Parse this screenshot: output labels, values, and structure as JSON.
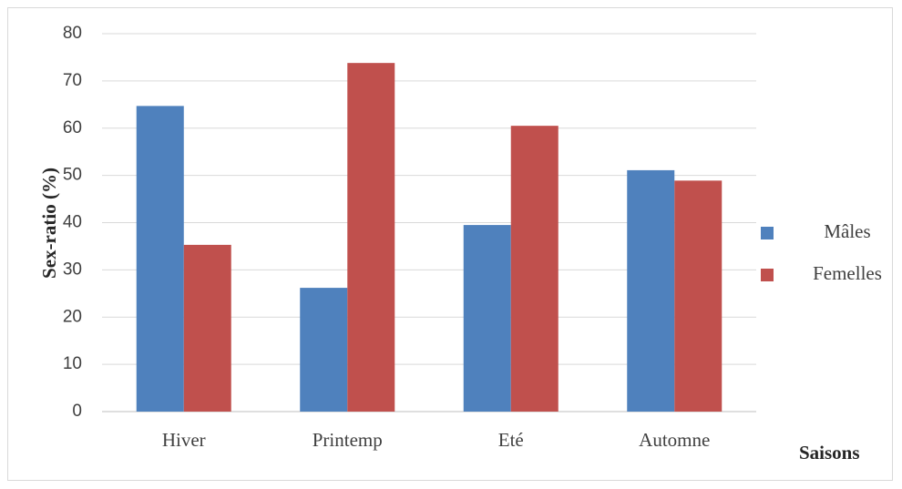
{
  "chart_data": {
    "type": "bar",
    "title": "",
    "xlabel": "Saisons",
    "ylabel": "Sex-ratio (%)",
    "categories": [
      "Hiver",
      "Printemp",
      "Eté",
      "Automne"
    ],
    "series": [
      {
        "name": "Mâles",
        "color": "#4f81bd",
        "values": [
          64.7,
          26.2,
          39.5,
          51.1
        ]
      },
      {
        "name": "Femelles",
        "color": "#c0504d",
        "values": [
          35.3,
          73.8,
          60.5,
          48.9
        ]
      }
    ],
    "ylim": [
      0,
      80
    ],
    "yticks": [
      "0",
      "10",
      "20",
      "30",
      "40",
      "50",
      "60",
      "70",
      "80"
    ],
    "grid": true,
    "legend_position": "right"
  }
}
